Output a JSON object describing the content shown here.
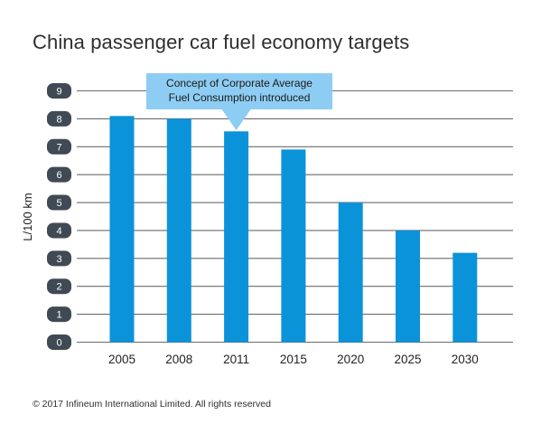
{
  "chart_data": {
    "type": "bar",
    "title": "China passenger car fuel economy targets",
    "ylabel": "L/100 km",
    "xlabel": "",
    "categories": [
      "2005",
      "2008",
      "2011",
      "2015",
      "2020",
      "2025",
      "2030"
    ],
    "values": [
      8.1,
      8.0,
      7.55,
      6.9,
      5.0,
      4.0,
      3.2
    ],
    "ylim": [
      0,
      9
    ],
    "yticks": [
      "0",
      "1",
      "2",
      "3",
      "4",
      "5",
      "6",
      "7",
      "8",
      "9"
    ],
    "grid": true,
    "bar_color": "#0b93da",
    "tick_badge_color": "#404a55",
    "annotation": {
      "lines": [
        "Concept of Corporate Average",
        "Fuel Consumption introduced"
      ],
      "category": "2011",
      "color": "#8ecdf3"
    }
  },
  "footer": "© 2017 Infineum International Limited. All rights reserved"
}
